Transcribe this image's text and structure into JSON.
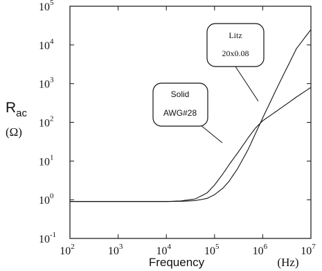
{
  "chart_data": {
    "type": "line",
    "x_scale": "log",
    "y_scale": "log",
    "xlim": [
      100,
      10000000
    ],
    "ylim": [
      0.1,
      100000
    ],
    "xticks": [
      {
        "base": "10",
        "exp": "2",
        "value": 100
      },
      {
        "base": "10",
        "exp": "3",
        "value": 1000
      },
      {
        "base": "10",
        "exp": "4",
        "value": 10000
      },
      {
        "base": "10",
        "exp": "5",
        "value": 100000
      },
      {
        "base": "10",
        "exp": "6",
        "value": 1000000
      },
      {
        "base": "10",
        "exp": "7",
        "value": 10000000
      }
    ],
    "yticks": [
      {
        "base": "10",
        "exp": "-1",
        "value": 0.1
      },
      {
        "base": "10",
        "exp": "0",
        "value": 1
      },
      {
        "base": "10",
        "exp": "1",
        "value": 10
      },
      {
        "base": "10",
        "exp": "2",
        "value": 100
      },
      {
        "base": "10",
        "exp": "3",
        "value": 1000
      },
      {
        "base": "10",
        "exp": "4",
        "value": 10000
      },
      {
        "base": "10",
        "exp": "5",
        "value": 100000
      }
    ],
    "xlabel": "Frequency",
    "xlabel_unit": "(Hz)",
    "ylabel_main": "R",
    "ylabel_sub": "ac",
    "ylabel_unit": "(Ω)",
    "grid": false,
    "series": [
      {
        "name": "Solid AWG#28",
        "x": [
          100,
          1000,
          10000,
          20000,
          40000,
          70000,
          100000,
          150000,
          200000,
          300000,
          500000,
          700000,
          1000000,
          2000000,
          5000000,
          10000000
        ],
        "y": [
          0.9,
          0.9,
          0.9,
          0.93,
          1.05,
          1.5,
          2.4,
          4.7,
          8,
          16,
          40,
          70,
          110,
          200,
          450,
          800
        ]
      },
      {
        "name": "Litz 20x0.08",
        "x": [
          100,
          1000,
          10000,
          20000,
          40000,
          70000,
          100000,
          150000,
          200000,
          300000,
          500000,
          700000,
          1000000,
          2000000,
          5000000,
          10000000
        ],
        "y": [
          0.9,
          0.9,
          0.9,
          0.91,
          0.95,
          1.08,
          1.35,
          2,
          3,
          6.3,
          20,
          50,
          130,
          800,
          8000,
          25000
        ]
      }
    ],
    "annotations": [
      {
        "line1": "Litz",
        "line2": "20x0.08"
      },
      {
        "line1": "Solid",
        "line2": "AWG#28"
      }
    ]
  }
}
